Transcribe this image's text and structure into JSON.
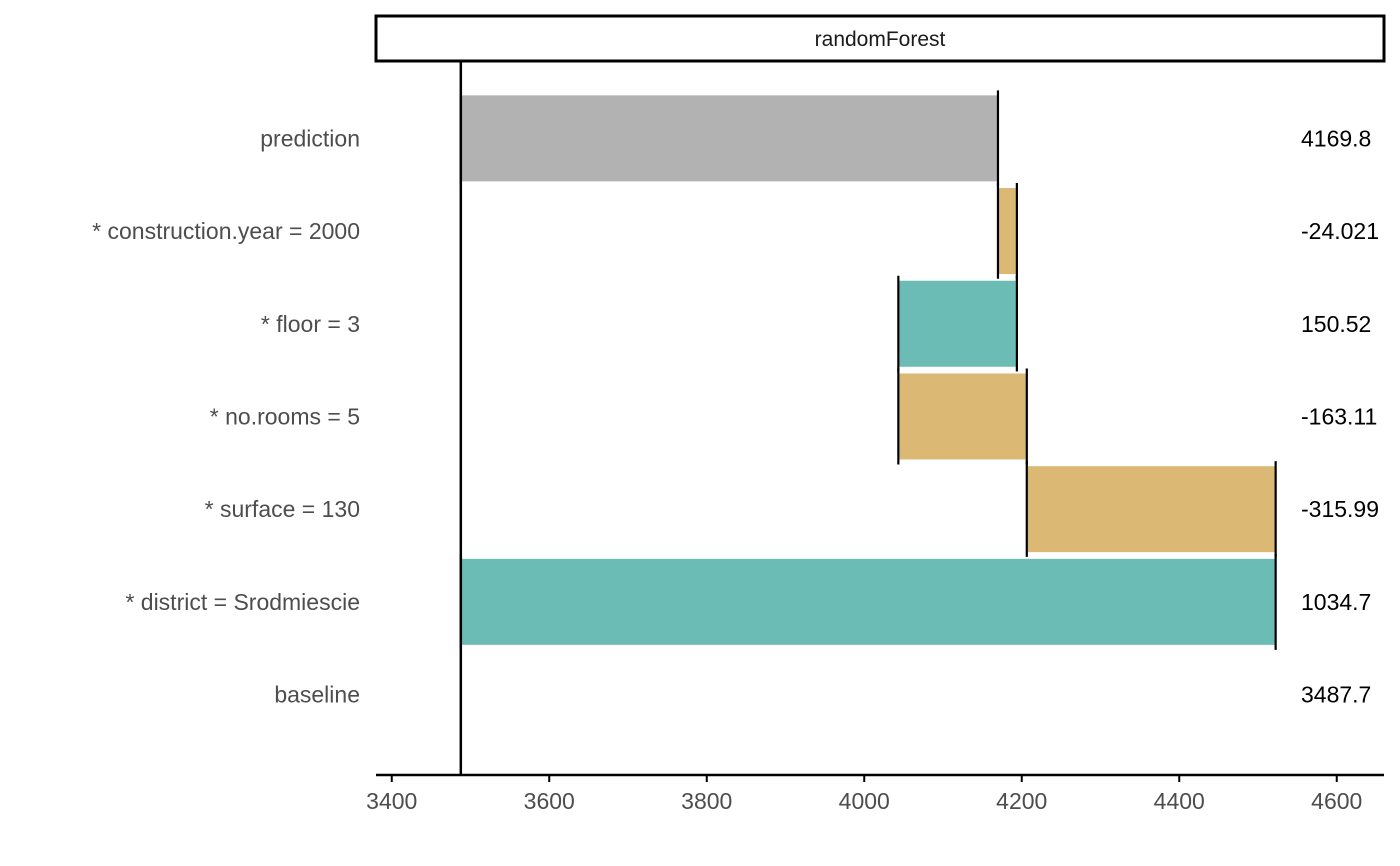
{
  "chart_data": {
    "type": "bar",
    "subtype": "waterfall-break-down",
    "panel_title": "randomForest",
    "xlim": [
      3380,
      4660
    ],
    "xticks": [
      3400,
      3600,
      3800,
      4000,
      4200,
      4400,
      4600
    ],
    "xtick_labels": [
      "3400",
      "3600",
      "3800",
      "4000",
      "4200",
      "4400",
      "4600"
    ],
    "baseline_value": 3487.7,
    "colors": {
      "positive": "#6BBCB4",
      "negative": "#DBB975",
      "prediction": "#B2B2B2",
      "axis": "#000000"
    },
    "rows": [
      {
        "label": "prediction",
        "start": 3487.7,
        "end": 4169.8,
        "kind": "prediction",
        "value_label": "4169.8"
      },
      {
        "label": "* construction.year = 2000",
        "start": 4169.8,
        "end": 4193.8,
        "kind": "negative",
        "value_label": "-24.021"
      },
      {
        "label": "* floor = 3",
        "start": 4043.3,
        "end": 4193.8,
        "kind": "positive",
        "value_label": "150.52"
      },
      {
        "label": "* no.rooms = 5",
        "start": 4043.3,
        "end": 4206.4,
        "kind": "negative",
        "value_label": "-163.11"
      },
      {
        "label": "* surface = 130",
        "start": 4206.4,
        "end": 4522.4,
        "kind": "negative",
        "value_label": "-315.99"
      },
      {
        "label": "* district = Srodmiescie",
        "start": 3487.7,
        "end": 4522.4,
        "kind": "positive",
        "value_label": "1034.7"
      },
      {
        "label": "baseline",
        "start": 3487.7,
        "end": 3487.7,
        "kind": "baseline",
        "value_label": "3487.7"
      }
    ]
  }
}
